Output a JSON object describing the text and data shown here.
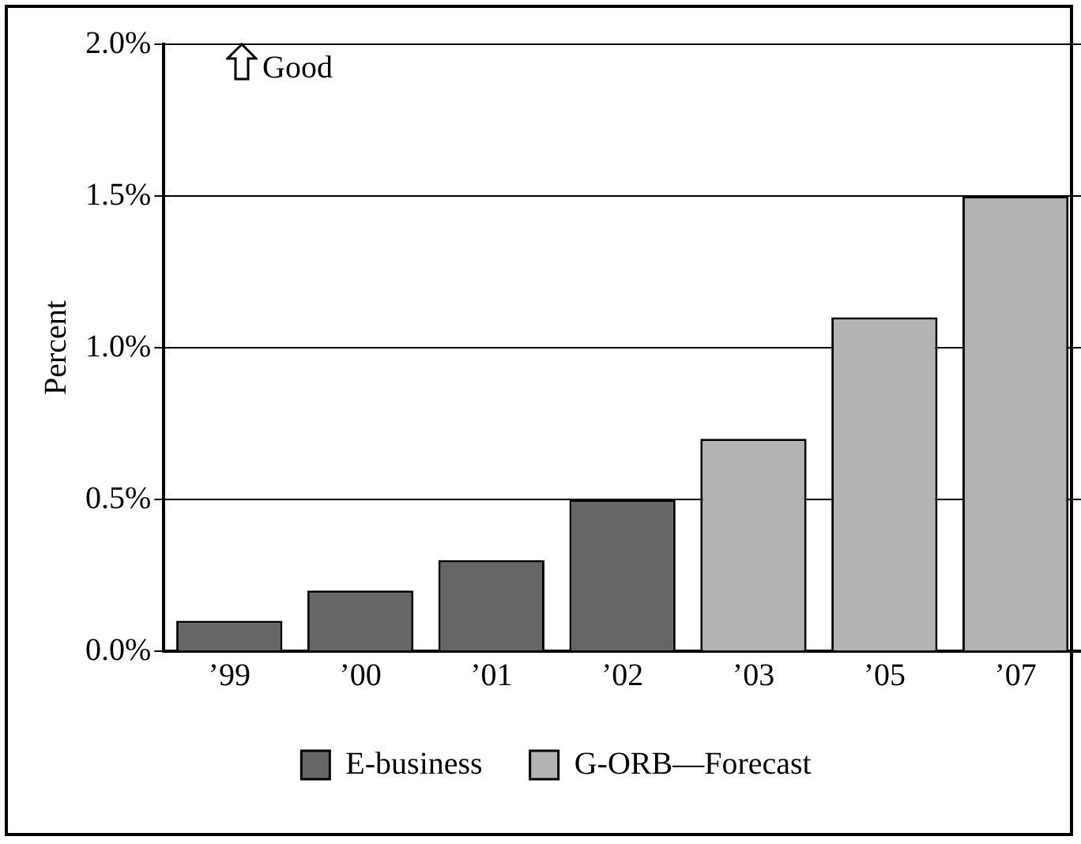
{
  "chart_data": {
    "type": "bar",
    "ylabel": "Percent",
    "categories": [
      "’99",
      "’00",
      "’01",
      "’02",
      "’03",
      "’05",
      "’07"
    ],
    "series": [
      {
        "name": "E-business",
        "color": "#666666",
        "values": [
          0.1,
          0.2,
          0.3,
          0.5,
          null,
          null,
          null
        ]
      },
      {
        "name": "G-ORB—Forecast",
        "color": "#b3b3b3",
        "values": [
          null,
          null,
          null,
          null,
          0.7,
          1.1,
          1.5
        ]
      }
    ],
    "ylim": [
      0,
      2
    ],
    "yticks": [
      {
        "value": 0,
        "label": "0.0%"
      },
      {
        "value": 0.5,
        "label": "0.5%"
      },
      {
        "value": 1,
        "label": "1.0%"
      },
      {
        "value": 1.5,
        "label": "1.5%"
      },
      {
        "value": 2,
        "label": "2.0%"
      }
    ],
    "grid": "y",
    "legend": "bottom",
    "annotations": [
      "Good"
    ]
  }
}
